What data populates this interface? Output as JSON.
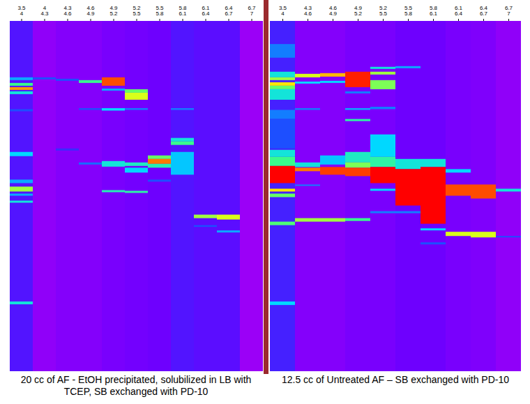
{
  "chart_data": [
    {
      "type": "heatmap",
      "caption": "20 cc of AF - EtOH precipitated, solubilized in LB with TCEP, SB exchanged with PD-10",
      "ylim": [
        0,
        100
      ],
      "zlim": [
        0,
        100
      ],
      "colors": [
        "#c800f0",
        "#6a00ff",
        "#2040ff",
        "#00d8ff",
        "#40ff80",
        "#ffff00",
        "#ff0000"
      ],
      "tick_labels": "x",
      "lanes": [
        {
          "label": [
            "3.5",
            "4"
          ],
          "background": 22,
          "bands": [
            [
              16.1,
              16.9,
              45
            ],
            [
              17.7,
              18.5,
              65
            ],
            [
              18.9,
              19.7,
              90
            ],
            [
              20.1,
              20.9,
              55
            ],
            [
              25.2,
              25.8,
              35
            ],
            [
              37.4,
              38.6,
              50
            ],
            [
              45.3,
              46.3,
              45
            ],
            [
              47.3,
              48.7,
              75
            ],
            [
              49.3,
              49.9,
              45
            ],
            [
              51.3,
              51.9,
              55
            ],
            [
              80.1,
              80.9,
              55
            ]
          ]
        },
        {
          "label": [
            "4",
            "4.3"
          ],
          "background": 10,
          "bands": [
            [
              16.1,
              16.7,
              35
            ]
          ]
        },
        {
          "label": [
            "4.3",
            "4.6"
          ],
          "background": 12,
          "bands": [
            [
              16.5,
              17.1,
              35
            ],
            [
              36.4,
              37.0,
              28
            ]
          ]
        },
        {
          "label": [
            "4.6",
            "4.9"
          ],
          "background": 12,
          "bands": [
            [
              16.9,
              17.7,
              65
            ],
            [
              24.9,
              25.4,
              35
            ],
            [
              40.4,
              41.0,
              38
            ]
          ]
        },
        {
          "label": [
            "4.9",
            "5.2"
          ],
          "background": 14,
          "bands": [
            [
              16.1,
              18.5,
              95
            ],
            [
              19.3,
              19.9,
              45
            ],
            [
              24.9,
              25.6,
              50
            ],
            [
              40.0,
              41.6,
              55
            ],
            [
              48.3,
              48.9,
              60
            ]
          ]
        },
        {
          "label": [
            "5.2",
            "5.5"
          ],
          "background": 15,
          "bands": [
            [
              19.5,
              20.5,
              70
            ],
            [
              20.5,
              22.5,
              80
            ],
            [
              24.9,
              25.4,
              40
            ],
            [
              40.4,
              41.4,
              58
            ],
            [
              41.9,
              43.3,
              50
            ],
            [
              48.5,
              49.1,
              62
            ]
          ]
        },
        {
          "label": [
            "5.5",
            "5.8"
          ],
          "background": 16,
          "bands": [
            [
              38.4,
              39.4,
              70
            ],
            [
              39.4,
              40.8,
              92
            ],
            [
              40.8,
              41.9,
              60
            ],
            [
              45.3,
              45.9,
              35
            ]
          ]
        },
        {
          "label": [
            "5.8",
            "6.1"
          ],
          "background": 22,
          "bands": [
            [
              24.9,
              25.4,
              40
            ],
            [
              33.4,
              34.4,
              55
            ],
            [
              34.4,
              35.4,
              65
            ],
            [
              37.4,
              43.9,
              48
            ]
          ]
        },
        {
          "label": [
            "6.1",
            "6.4"
          ],
          "background": 20,
          "bands": [
            [
              55.3,
              56.3,
              75
            ],
            [
              58.3,
              58.8,
              35
            ]
          ]
        },
        {
          "label": [
            "6.4",
            "6.7"
          ],
          "background": 20,
          "bands": [
            [
              55.3,
              56.7,
              80
            ],
            [
              59.8,
              60.4,
              45
            ]
          ]
        },
        {
          "label": [
            "6.7",
            "7"
          ],
          "background": 8,
          "bands": []
        }
      ]
    },
    {
      "type": "heatmap",
      "caption": "12.5 cc of Untreated AF – SB exchanged with PD-10",
      "ylim": [
        0,
        100
      ],
      "zlim": [
        0,
        100
      ],
      "colors": [
        "#c800f0",
        "#6a00ff",
        "#2040ff",
        "#00d8ff",
        "#40ff80",
        "#ffff00",
        "#ff0000"
      ],
      "tick_labels": "x",
      "lanes": [
        {
          "label": [
            "3.5",
            "4"
          ],
          "background": 25,
          "bands": [
            [
              6.6,
              10.5,
              40
            ],
            [
              14.5,
              16.1,
              55
            ],
            [
              16.1,
              16.9,
              75
            ],
            [
              17.5,
              18.5,
              85
            ],
            [
              18.5,
              19.5,
              70
            ],
            [
              19.5,
              22.5,
              55
            ],
            [
              25.4,
              28.0,
              40
            ],
            [
              28.0,
              36.4,
              35
            ],
            [
              36.8,
              38.8,
              55
            ],
            [
              38.8,
              41.4,
              65
            ],
            [
              41.4,
              46.3,
              100
            ],
            [
              47.9,
              48.7,
              85
            ],
            [
              49.3,
              50.3,
              70
            ],
            [
              57.3,
              58.3,
              68
            ],
            [
              80.1,
              81.1,
              50
            ]
          ]
        },
        {
          "label": [
            "4.3",
            "4.6"
          ],
          "background": 12,
          "bands": [
            [
              15.1,
              16.1,
              80
            ],
            [
              17.3,
              17.9,
              50
            ],
            [
              24.9,
              25.4,
              40
            ],
            [
              40.4,
              41.7,
              55
            ],
            [
              41.9,
              42.9,
              92
            ],
            [
              46.7,
              47.1,
              40
            ],
            [
              56.3,
              57.3,
              75
            ]
          ]
        },
        {
          "label": [
            "4.6",
            "4.9"
          ],
          "background": 12,
          "bands": [
            [
              14.9,
              15.9,
              88
            ],
            [
              17.1,
              17.7,
              50
            ],
            [
              38.4,
              41.0,
              48
            ],
            [
              41.7,
              43.9,
              96
            ],
            [
              56.3,
              57.3,
              75
            ]
          ]
        },
        {
          "label": [
            "4.9",
            "5.2"
          ],
          "background": 14,
          "bands": [
            [
              14.5,
              18.9,
              98
            ],
            [
              20.1,
              20.7,
              40
            ],
            [
              24.9,
              25.4,
              45
            ],
            [
              28.0,
              28.6,
              62
            ],
            [
              37.4,
              40.4,
              58
            ],
            [
              40.4,
              41.9,
              72
            ],
            [
              41.9,
              44.3,
              96
            ],
            [
              56.3,
              57.1,
              65
            ]
          ]
        },
        {
          "label": [
            "5.2",
            "5.5"
          ],
          "background": 14,
          "bands": [
            [
              13.1,
              13.7,
              55
            ],
            [
              14.5,
              15.3,
              75
            ],
            [
              16.9,
              19.5,
              72
            ],
            [
              24.5,
              25.2,
              40
            ],
            [
              32.4,
              38.8,
              50
            ],
            [
              38.8,
              41.7,
              62
            ],
            [
              41.7,
              46.3,
              100
            ],
            [
              47.9,
              48.5,
              50
            ],
            [
              54.3,
              54.9,
              40
            ]
          ]
        },
        {
          "label": [
            "5.5",
            "5.8"
          ],
          "background": 16,
          "bands": [
            [
              12.9,
              13.5,
              45
            ],
            [
              39.4,
              42.3,
              55
            ],
            [
              42.3,
              52.7,
              100
            ],
            [
              54.3,
              54.9,
              40
            ]
          ]
        },
        {
          "label": [
            "5.8",
            "6.1"
          ],
          "background": 16,
          "bands": [
            [
              39.4,
              41.7,
              55
            ],
            [
              41.7,
              57.9,
              100
            ],
            [
              59.2,
              59.8,
              50
            ],
            [
              63.2,
              63.8,
              35
            ]
          ]
        },
        {
          "label": [
            "6.1",
            "6.4"
          ],
          "background": 14,
          "bands": [
            [
              42.3,
              43.3,
              50
            ],
            [
              46.7,
              49.9,
              95
            ],
            [
              60.2,
              61.4,
              80
            ]
          ]
        },
        {
          "label": [
            "6.4",
            "6.7"
          ],
          "background": 13,
          "bands": [
            [
              46.7,
              50.7,
              95
            ],
            [
              60.2,
              61.8,
              80
            ]
          ]
        },
        {
          "label": [
            "6.7",
            "7"
          ],
          "background": 10,
          "bands": [
            [
              47.9,
              48.7,
              55
            ],
            [
              61.4,
              61.8,
              35
            ]
          ]
        }
      ]
    }
  ]
}
